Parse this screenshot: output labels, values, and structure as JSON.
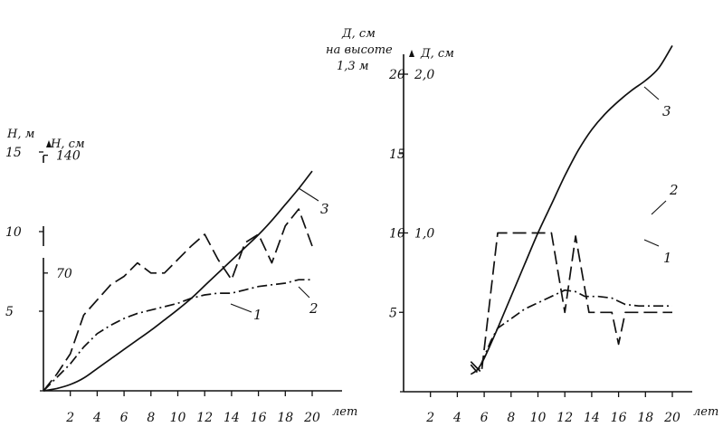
{
  "chart_data": [
    {
      "type": "line",
      "x_ticks": [
        2,
        4,
        6,
        8,
        10,
        12,
        14,
        16,
        18,
        20
      ],
      "xlabel": "лет",
      "xlim": [
        0,
        20
      ],
      "ylim": [
        0,
        15
      ],
      "y_ticks_outer": [
        5,
        10,
        15
      ],
      "y_ticks_inner": [
        70,
        140
      ],
      "ylabel_outer": "Н, м",
      "ylabel_inner": "Н, см",
      "series": [
        {
          "name": "1",
          "style": "dashed",
          "axis": "inner",
          "x": [
            0,
            1,
            2,
            3,
            4,
            5,
            6,
            7,
            8,
            9,
            10,
            11,
            12,
            13,
            14,
            15,
            16,
            17,
            18,
            19,
            20
          ],
          "y": [
            0,
            10,
            22,
            45,
            54,
            63,
            68,
            76,
            70,
            70,
            78,
            86,
            93,
            78,
            66,
            88,
            93,
            76,
            98,
            108,
            86
          ]
        },
        {
          "name": "2",
          "style": "dash-dot",
          "axis": "inner",
          "x": [
            0,
            1,
            2,
            3,
            4,
            5,
            6,
            7,
            8,
            9,
            10,
            11,
            12,
            13,
            14,
            15,
            16,
            17,
            18,
            19,
            20
          ],
          "y": [
            0,
            8,
            16,
            26,
            34,
            39,
            43,
            46,
            48,
            50,
            52,
            55,
            57,
            58,
            58,
            60,
            62,
            63,
            64,
            66,
            66
          ]
        },
        {
          "name": "3",
          "style": "solid",
          "axis": "outer",
          "x": [
            0,
            1,
            2,
            3,
            4,
            5,
            6,
            7,
            8,
            9,
            10,
            11,
            12,
            13,
            14,
            15,
            16,
            17,
            18,
            19,
            20
          ],
          "y": [
            0,
            0.15,
            0.4,
            0.8,
            1.4,
            2.0,
            2.6,
            3.2,
            3.8,
            4.45,
            5.1,
            5.8,
            6.6,
            7.4,
            8.2,
            9.0,
            9.8,
            10.7,
            11.7,
            12.7,
            13.8
          ]
        }
      ]
    },
    {
      "type": "line",
      "x_ticks": [
        2,
        4,
        6,
        8,
        10,
        12,
        14,
        16,
        18,
        20
      ],
      "xlabel": "лет",
      "xlim": [
        0,
        20
      ],
      "ylim": [
        0,
        22
      ],
      "y_ticks_outer": [
        5,
        10,
        15,
        20
      ],
      "y_ticks_inner": [
        "1,0",
        "2,0"
      ],
      "ylabel_outer": [
        "Д, см",
        "на высоте",
        "1,3 м"
      ],
      "ylabel_inner": "Д, см",
      "series": [
        {
          "name": "1",
          "style": "dashed",
          "axis": "inner",
          "x": [
            5,
            5.8,
            7,
            8,
            9,
            10,
            11,
            12,
            12.8,
            13.8,
            14.5,
            15.5,
            16,
            16.5,
            17.5,
            18.5,
            20
          ],
          "y": [
            0.19,
            0.12,
            1.0,
            1.0,
            1.0,
            1.0,
            1.0,
            0.5,
            0.98,
            0.5,
            0.5,
            0.5,
            0.3,
            0.5,
            0.5,
            0.5,
            0.5
          ]
        },
        {
          "name": "2",
          "style": "dash-dot",
          "axis": "inner",
          "x": [
            5,
            5.5,
            6,
            6.5,
            7,
            8,
            9,
            10,
            11,
            12,
            12.8,
            13.5,
            14.5,
            15.5,
            16.5,
            17.5,
            18.5,
            20
          ],
          "y": [
            0.17,
            0.12,
            0.22,
            0.32,
            0.4,
            0.46,
            0.52,
            0.56,
            0.6,
            0.64,
            0.63,
            0.6,
            0.6,
            0.59,
            0.55,
            0.54,
            0.54,
            0.54
          ]
        },
        {
          "name": "3",
          "style": "solid",
          "axis": "outer",
          "x": [
            5,
            5.5,
            6,
            7,
            8,
            9,
            10,
            11,
            12,
            13,
            14,
            15,
            16,
            17,
            18,
            19,
            20
          ],
          "y": [
            1.1,
            1.4,
            2.1,
            4.0,
            6.0,
            8.0,
            10.0,
            11.8,
            13.6,
            15.2,
            16.5,
            17.5,
            18.3,
            19.0,
            19.6,
            20.4,
            21.8
          ]
        }
      ]
    }
  ]
}
